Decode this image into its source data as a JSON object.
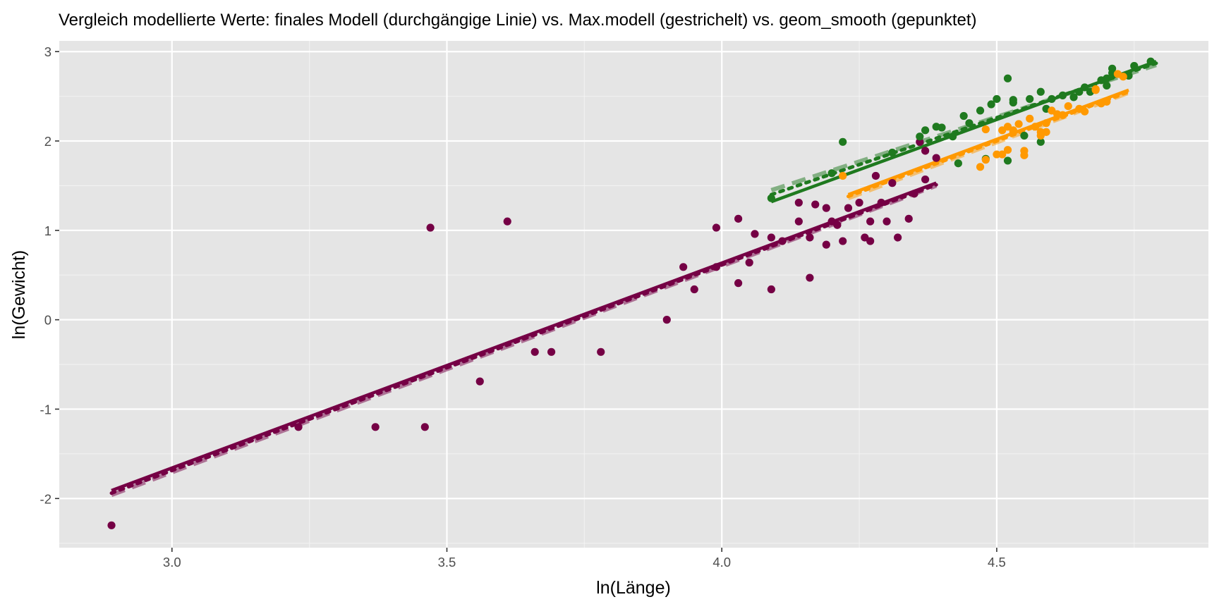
{
  "chart_data": {
    "type": "scatter",
    "title": "Vergleich modellierte Werte: finales Modell (durchgängige Linie) vs. Max.modell (gestrichelt) vs. geom_smooth (gepunktet)",
    "xlabel": "ln(Länge)",
    "ylabel": "ln(Gewicht)",
    "xlim": [
      2.795,
      4.885
    ],
    "ylim": [
      -2.55,
      3.12
    ],
    "x_ticks": [
      3.0,
      3.5,
      4.0,
      4.5
    ],
    "x_tick_labels": [
      "3.0",
      "3.5",
      "4.0",
      "4.5"
    ],
    "y_ticks": [
      -2,
      -1,
      0,
      1,
      2,
      3
    ],
    "y_tick_labels": [
      "-2",
      "-1",
      "0",
      "1",
      "2",
      "3"
    ],
    "grid": true,
    "legend": "none",
    "background": "#e5e5e5",
    "series": [
      {
        "color": "#750045",
        "points": [
          [
            2.89,
            -2.3
          ],
          [
            3.23,
            -1.2
          ],
          [
            3.37,
            -1.2
          ],
          [
            3.46,
            -1.2
          ],
          [
            3.47,
            1.03
          ],
          [
            3.56,
            -0.69
          ],
          [
            3.61,
            1.1
          ],
          [
            3.66,
            -0.36
          ],
          [
            3.69,
            -0.36
          ],
          [
            3.78,
            -0.36
          ],
          [
            3.9,
            0.0
          ],
          [
            3.93,
            0.59
          ],
          [
            3.95,
            0.34
          ],
          [
            3.99,
            0.59
          ],
          [
            3.99,
            1.03
          ],
          [
            4.03,
            1.13
          ],
          [
            4.03,
            0.41
          ],
          [
            4.05,
            0.64
          ],
          [
            4.06,
            0.96
          ],
          [
            4.09,
            0.92
          ],
          [
            4.09,
            0.34
          ],
          [
            4.11,
            0.88
          ],
          [
            4.14,
            1.1
          ],
          [
            4.14,
            1.31
          ],
          [
            4.16,
            0.92
          ],
          [
            4.16,
            0.47
          ],
          [
            4.17,
            1.29
          ],
          [
            4.19,
            0.84
          ],
          [
            4.19,
            1.25
          ],
          [
            4.2,
            1.1
          ],
          [
            4.21,
            1.06
          ],
          [
            4.22,
            0.88
          ],
          [
            4.23,
            1.25
          ],
          [
            4.25,
            1.31
          ],
          [
            4.26,
            0.92
          ],
          [
            4.27,
            0.88
          ],
          [
            4.27,
            1.1
          ],
          [
            4.28,
            1.61
          ],
          [
            4.29,
            1.31
          ],
          [
            4.3,
            1.1
          ],
          [
            4.31,
            1.53
          ],
          [
            4.32,
            0.92
          ],
          [
            4.34,
            1.13
          ],
          [
            4.35,
            1.41
          ],
          [
            4.36,
            1.99
          ],
          [
            4.37,
            1.57
          ],
          [
            4.37,
            1.89
          ],
          [
            4.39,
            1.81
          ]
        ],
        "fit_final": [
          [
            2.89,
            -1.91
          ],
          [
            4.39,
            1.53
          ]
        ],
        "fit_max": [
          [
            2.89,
            -1.96
          ],
          [
            4.39,
            1.5
          ]
        ],
        "fit_smooth": [
          [
            2.89,
            -1.94
          ],
          [
            4.39,
            1.51
          ]
        ]
      },
      {
        "color": "#1f7a1f",
        "points": [
          [
            4.09,
            1.36
          ],
          [
            4.2,
            1.64
          ],
          [
            4.22,
            1.99
          ],
          [
            4.31,
            1.87
          ],
          [
            4.36,
            2.05
          ],
          [
            4.37,
            2.12
          ],
          [
            4.39,
            2.16
          ],
          [
            4.4,
            2.15
          ],
          [
            4.42,
            2.05
          ],
          [
            4.43,
            1.75
          ],
          [
            4.44,
            2.28
          ],
          [
            4.45,
            2.2
          ],
          [
            4.47,
            2.34
          ],
          [
            4.48,
            1.8
          ],
          [
            4.49,
            2.41
          ],
          [
            4.5,
            2.47
          ],
          [
            4.52,
            2.7
          ],
          [
            4.52,
            1.78
          ],
          [
            4.53,
            2.46
          ],
          [
            4.53,
            2.43
          ],
          [
            4.55,
            2.06
          ],
          [
            4.56,
            2.47
          ],
          [
            4.58,
            2.55
          ],
          [
            4.59,
            2.36
          ],
          [
            4.6,
            2.47
          ],
          [
            4.62,
            2.51
          ],
          [
            4.64,
            2.49
          ],
          [
            4.65,
            2.55
          ],
          [
            4.66,
            2.6
          ],
          [
            4.67,
            2.55
          ],
          [
            4.69,
            2.68
          ],
          [
            4.7,
            2.7
          ],
          [
            4.7,
            2.62
          ],
          [
            4.71,
            2.81
          ],
          [
            4.71,
            2.76
          ],
          [
            4.74,
            2.73
          ],
          [
            4.75,
            2.84
          ],
          [
            4.78,
            2.89
          ],
          [
            4.58,
            1.99
          ]
        ],
        "fit_final": [
          [
            4.09,
            1.32
          ],
          [
            4.79,
            2.89
          ]
        ],
        "fit_max": [
          [
            4.09,
            1.45
          ],
          [
            4.79,
            2.85
          ]
        ],
        "fit_smooth": [
          [
            4.09,
            1.4
          ],
          [
            4.79,
            2.87
          ]
        ]
      },
      {
        "color": "#ff9900",
        "points": [
          [
            4.22,
            1.61
          ],
          [
            4.47,
            1.71
          ],
          [
            4.48,
            1.79
          ],
          [
            4.48,
            2.13
          ],
          [
            4.5,
            1.85
          ],
          [
            4.51,
            1.85
          ],
          [
            4.51,
            2.12
          ],
          [
            4.52,
            2.16
          ],
          [
            4.52,
            1.9
          ],
          [
            4.53,
            2.12
          ],
          [
            4.53,
            2.1
          ],
          [
            4.54,
            2.19
          ],
          [
            4.55,
            1.89
          ],
          [
            4.55,
            1.84
          ],
          [
            4.56,
            2.25
          ],
          [
            4.57,
            2.16
          ],
          [
            4.58,
            2.1
          ],
          [
            4.58,
            2.06
          ],
          [
            4.59,
            2.2
          ],
          [
            4.59,
            2.1
          ],
          [
            4.6,
            2.34
          ],
          [
            4.61,
            2.3
          ],
          [
            4.62,
            2.29
          ],
          [
            4.63,
            2.39
          ],
          [
            4.65,
            2.36
          ],
          [
            4.66,
            2.33
          ],
          [
            4.68,
            2.58
          ],
          [
            4.68,
            2.57
          ],
          [
            4.69,
            2.42
          ],
          [
            4.7,
            2.44
          ],
          [
            4.72,
            2.75
          ],
          [
            4.73,
            2.72
          ]
        ],
        "fit_final": [
          [
            4.23,
            1.4
          ],
          [
            4.74,
            2.57
          ]
        ],
        "fit_max": [
          [
            4.23,
            1.36
          ],
          [
            4.74,
            2.54
          ]
        ],
        "fit_smooth": [
          [
            4.23,
            1.38
          ],
          [
            4.74,
            2.55
          ]
        ]
      }
    ]
  }
}
